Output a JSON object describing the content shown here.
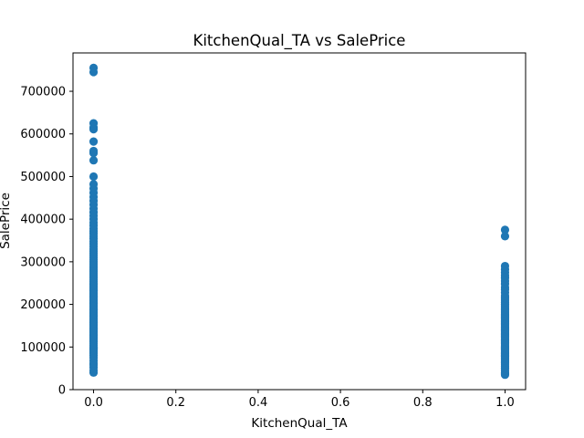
{
  "chart_data": {
    "type": "scatter",
    "title": "KitchenQual_TA vs SalePrice",
    "xlabel": "KitchenQual_TA",
    "ylabel": "SalePrice",
    "xlim": [
      -0.05,
      1.05
    ],
    "ylim": [
      0,
      790000
    ],
    "xticks": [
      0.0,
      0.2,
      0.4,
      0.6,
      0.8,
      1.0
    ],
    "xtick_labels": [
      "0.0",
      "0.2",
      "0.4",
      "0.6",
      "0.8",
      "1.0"
    ],
    "yticks": [
      0,
      100000,
      200000,
      300000,
      400000,
      500000,
      600000,
      700000
    ],
    "ytick_labels": [
      "0",
      "100000",
      "200000",
      "300000",
      "400000",
      "500000",
      "600000",
      "700000"
    ],
    "grid": false,
    "marker_color": "#1f77b4",
    "series": [
      {
        "x_value": 0,
        "y": [
          40000,
          45000,
          52000,
          58000,
          62000,
          68000,
          75000,
          80000,
          85000,
          88000,
          92000,
          95000,
          98000,
          100000,
          104000,
          108000,
          112000,
          115000,
          118000,
          121000,
          124000,
          127000,
          130000,
          133000,
          136000,
          139000,
          142000,
          145000,
          148000,
          151000,
          154000,
          157000,
          160000,
          163000,
          166000,
          169000,
          172000,
          175000,
          178000,
          181000,
          184000,
          187000,
          190000,
          193000,
          196000,
          199000,
          202000,
          205000,
          208000,
          211000,
          214000,
          217000,
          220000,
          223000,
          226000,
          229000,
          232000,
          235000,
          238000,
          241000,
          244000,
          247000,
          250000,
          254000,
          258000,
          262000,
          266000,
          270000,
          274000,
          278000,
          282000,
          286000,
          290000,
          295000,
          300000,
          305000,
          310000,
          315000,
          320000,
          325000,
          330000,
          336000,
          342000,
          348000,
          354000,
          360000,
          366000,
          372000,
          378000,
          385000,
          392000,
          400000,
          408000,
          416000,
          425000,
          434000,
          443000,
          452000,
          462000,
          472000,
          482000,
          500000,
          538000,
          555000,
          560000,
          582000,
          611000,
          615000,
          625000,
          745000,
          755000
        ]
      },
      {
        "x_value": 1,
        "y": [
          34900,
          37900,
          40000,
          45000,
          50000,
          55000,
          60000,
          64000,
          68000,
          72000,
          75000,
          78000,
          81000,
          84000,
          87000,
          90000,
          93000,
          96000,
          99000,
          102000,
          105000,
          108000,
          111000,
          114000,
          117000,
          120000,
          123000,
          126000,
          129000,
          132000,
          135000,
          138000,
          141000,
          144000,
          147000,
          150000,
          153000,
          156000,
          159000,
          162000,
          165000,
          168000,
          171000,
          174000,
          177000,
          180000,
          184000,
          188000,
          192000,
          196000,
          200000,
          205000,
          210000,
          215000,
          220000,
          228000,
          235000,
          240000,
          248000,
          255000,
          262000,
          268000,
          275000,
          282000,
          290000,
          360000,
          375000
        ]
      }
    ]
  }
}
